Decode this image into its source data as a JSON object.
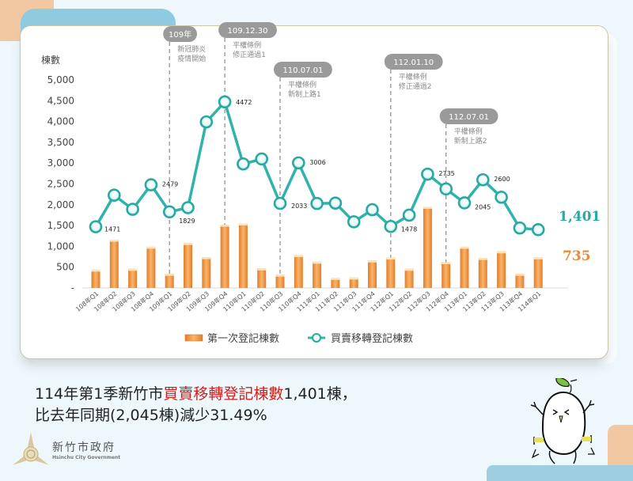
{
  "chart_data": {
    "type": "bar+line",
    "ylabel": "棟數",
    "ylim": [
      0,
      5000
    ],
    "yticks": [
      "-",
      "500",
      "1,000",
      "1,500",
      "2,000",
      "2,500",
      "3,000",
      "3,500",
      "4,000",
      "4,500",
      "5,000"
    ],
    "categories": [
      "108年Q1",
      "108年Q2",
      "108年Q3",
      "108年Q4",
      "109年Q1",
      "109年Q2",
      "109年Q3",
      "109年Q4",
      "110年Q1",
      "110年Q2",
      "110年Q3",
      "110年Q4",
      "111年Q1",
      "111年Q2",
      "111年Q3",
      "111年Q4",
      "112年Q1",
      "112年Q2",
      "112年Q3",
      "112年Q4",
      "113年Q1",
      "113年Q2",
      "113年Q3",
      "113年Q4",
      "114年Q1"
    ],
    "series": [
      {
        "name": "第一次登記棟數",
        "type": "bar",
        "color": "#f0a050",
        "values": [
          440,
          1160,
          460,
          990,
          340,
          1080,
          740,
          1520,
          1550,
          470,
          320,
          790,
          630,
          240,
          250,
          660,
          730,
          460,
          1950,
          620,
          990,
          720,
          880,
          340,
          735
        ]
      },
      {
        "name": "買賣移轉登記棟數",
        "type": "line",
        "color": "#2fb3ad",
        "values": [
          1471,
          2230,
          1890,
          2479,
          1829,
          1930,
          3990,
          4472,
          2980,
          3100,
          2033,
          3006,
          2030,
          2040,
          1590,
          1880,
          1478,
          1750,
          2735,
          2380,
          2045,
          2600,
          2180,
          1440,
          1401
        ]
      }
    ],
    "data_labels": [
      {
        "index": 0,
        "value": "1471"
      },
      {
        "index": 3,
        "value": "2479"
      },
      {
        "index": 4,
        "value": "1829"
      },
      {
        "index": 7,
        "value": "4472"
      },
      {
        "index": 10,
        "value": "2033"
      },
      {
        "index": 11,
        "value": "3006"
      },
      {
        "index": 16,
        "value": "1478"
      },
      {
        "index": 18,
        "value": "2735"
      },
      {
        "index": 20,
        "value": "2045"
      },
      {
        "index": 21,
        "value": "2600"
      }
    ],
    "callouts": {
      "line_last": "1,401",
      "bar_last": "735"
    },
    "annotations": [
      {
        "index": 4,
        "tag": "109年",
        "text": [
          "新冠肺炎",
          "疫情開始"
        ]
      },
      {
        "index": 7,
        "tag": "109.12.30",
        "text": [
          "平權條例",
          "修正通過1"
        ]
      },
      {
        "index": 10,
        "tag": "110.07.01",
        "text": [
          "平權條例",
          "新制上路1"
        ]
      },
      {
        "index": 16,
        "tag": "112.01.10",
        "text": [
          "平權條例",
          "修正通過2"
        ]
      },
      {
        "index": 19,
        "tag": "112.07.01",
        "text": [
          "平權條例",
          "新制上路2"
        ]
      }
    ],
    "legend": [
      "第一次登記棟數",
      "買賣移轉登記棟數"
    ],
    "legend_position": "bottom",
    "grid": false
  },
  "headline": {
    "line1_prefix": "114年第1季新竹市",
    "line1_highlight": "買賣移轉登記棟數",
    "line1_suffix": "1,401棟，",
    "line2": "比去年同期(2,045棟)減少31.49%"
  },
  "logo": {
    "name_zh": "新竹市政府",
    "name_en": "Hsinchu City Government"
  }
}
